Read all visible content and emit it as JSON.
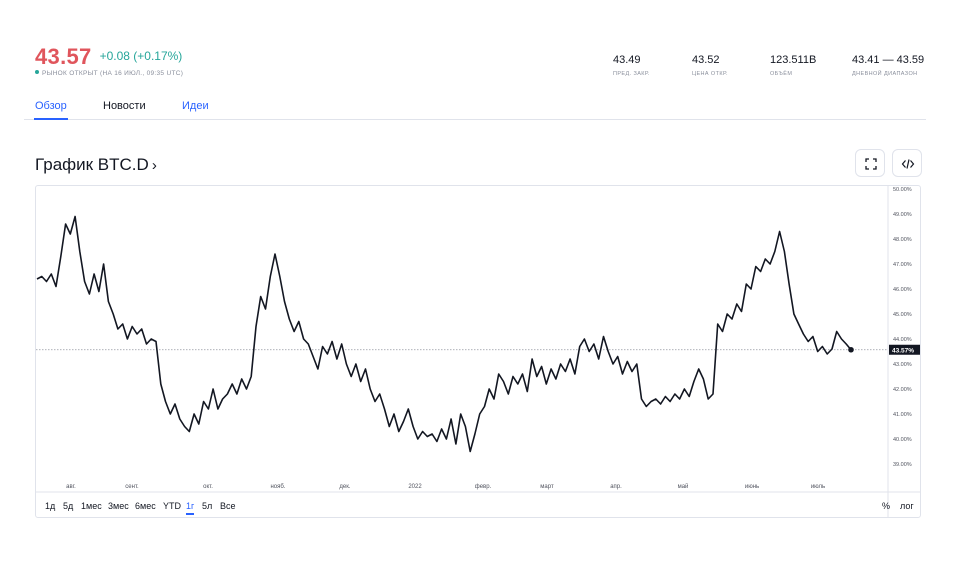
{
  "header": {
    "price": "43.57",
    "change": "+0.08 (+0.17%)",
    "market_status": "РЫНОК ОТКРЫТ (НА 16 ИЮЛ., 09:35 UTC)",
    "colors": {
      "price": "#e0555c",
      "change": "#26a69a",
      "status_dot": "#26a69a"
    }
  },
  "stats": [
    {
      "value": "43.49",
      "label": "ПРЕД. ЗАКР."
    },
    {
      "value": "43.52",
      "label": "ЦЕНА ОТКР."
    },
    {
      "value": "123.511B",
      "label": "ОБЪЁМ"
    },
    {
      "value": "43.41 — 43.59",
      "label": "ДНЕВНОЙ ДИАПАЗОН"
    }
  ],
  "tabs": [
    {
      "label": "Обзор",
      "state": "active"
    },
    {
      "label": "Новости",
      "state": "plain"
    },
    {
      "label": "Идеи",
      "state": "link"
    }
  ],
  "chart_section": {
    "title": "График BTC.D",
    "chevron": "›",
    "fullscreen_icon": "fullscreen-icon",
    "embed_icon": "code-embed-icon"
  },
  "range_buttons": [
    "1д",
    "5д",
    "1мес",
    "3мес",
    "6мес",
    "YTD",
    "1г",
    "5л",
    "Все"
  ],
  "active_range": "1г",
  "scale_options": [
    "%",
    "лог"
  ],
  "chart_data": {
    "type": "line",
    "title": "",
    "xlabel": "",
    "ylabel": "",
    "ylim": [
      38.5,
      50.0
    ],
    "grid": false,
    "line_color": "#131722",
    "last_value_label": "43.57%",
    "last_value": 43.57,
    "x_ticks": [
      "авг.",
      "сент.",
      "окт.",
      "нояб.",
      "дек.",
      "2022",
      "февр.",
      "март",
      "апр.",
      "май",
      "июнь",
      "июль"
    ],
    "y_ticks": [
      {
        "value": 50,
        "label": "50.00%"
      },
      {
        "value": 49,
        "label": "49.00%"
      },
      {
        "value": 48,
        "label": "48.00%"
      },
      {
        "value": 47,
        "label": "47.00%"
      },
      {
        "value": 46,
        "label": "46.00%"
      },
      {
        "value": 45,
        "label": "45.00%"
      },
      {
        "value": 44,
        "label": "44.00%"
      },
      {
        "value": 43,
        "label": "43.00%"
      },
      {
        "value": 42,
        "label": "42.00%"
      },
      {
        "value": 41,
        "label": "41.00%"
      },
      {
        "value": 40,
        "label": "40.00%"
      },
      {
        "value": 39,
        "label": "39.00%"
      }
    ],
    "series": [
      {
        "values": [
          46.4,
          46.5,
          46.3,
          46.6,
          46.1,
          47.3,
          48.6,
          48.2,
          48.9,
          47.5,
          46.3,
          45.8,
          46.6,
          45.9,
          47.0,
          45.5,
          45.0,
          44.4,
          44.6,
          44.0,
          44.5,
          44.2,
          44.4,
          43.8,
          44.0,
          43.9,
          42.2,
          41.5,
          41.0,
          41.4,
          40.8,
          40.5,
          40.3,
          41.0,
          40.6,
          41.5,
          41.2,
          42.0,
          41.2,
          41.6,
          41.8,
          42.2,
          41.8,
          42.4,
          42.0,
          42.5,
          44.5,
          45.7,
          45.2,
          46.5,
          47.4,
          46.5,
          45.5,
          44.8,
          44.3,
          44.7,
          44.0,
          43.8,
          43.3,
          42.8,
          43.7,
          43.4,
          43.9,
          43.2,
          43.8,
          43.0,
          42.5,
          43.0,
          42.3,
          42.8,
          42.0,
          41.5,
          41.8,
          41.2,
          40.5,
          41.0,
          40.3,
          40.7,
          41.2,
          40.5,
          40.0,
          40.3,
          40.1,
          40.2,
          39.9,
          40.4,
          40.0,
          40.8,
          39.8,
          41.0,
          40.5,
          39.5,
          40.2,
          41.0,
          41.3,
          42.0,
          41.6,
          42.6,
          42.3,
          41.8,
          42.5,
          42.2,
          42.6,
          41.9,
          43.2,
          42.5,
          42.9,
          42.2,
          42.8,
          42.4,
          43.0,
          42.7,
          43.2,
          42.6,
          43.7,
          44.0,
          43.5,
          43.8,
          43.2,
          44.1,
          43.5,
          43.0,
          43.3,
          42.6,
          43.1,
          42.7,
          43.0,
          41.6,
          41.3,
          41.5,
          41.6,
          41.4,
          41.7,
          41.5,
          41.8,
          41.6,
          42.0,
          41.7,
          42.3,
          42.8,
          42.4,
          41.6,
          41.8,
          44.6,
          44.3,
          45.0,
          44.8,
          45.4,
          45.1,
          46.2,
          46.0,
          46.9,
          46.7,
          47.2,
          47.0,
          47.5,
          48.3,
          47.5,
          46.2,
          45.0,
          44.6,
          44.2,
          43.9,
          44.1,
          43.5,
          43.7,
          43.4,
          43.6,
          44.3,
          44.0,
          43.8,
          43.57
        ]
      }
    ]
  }
}
